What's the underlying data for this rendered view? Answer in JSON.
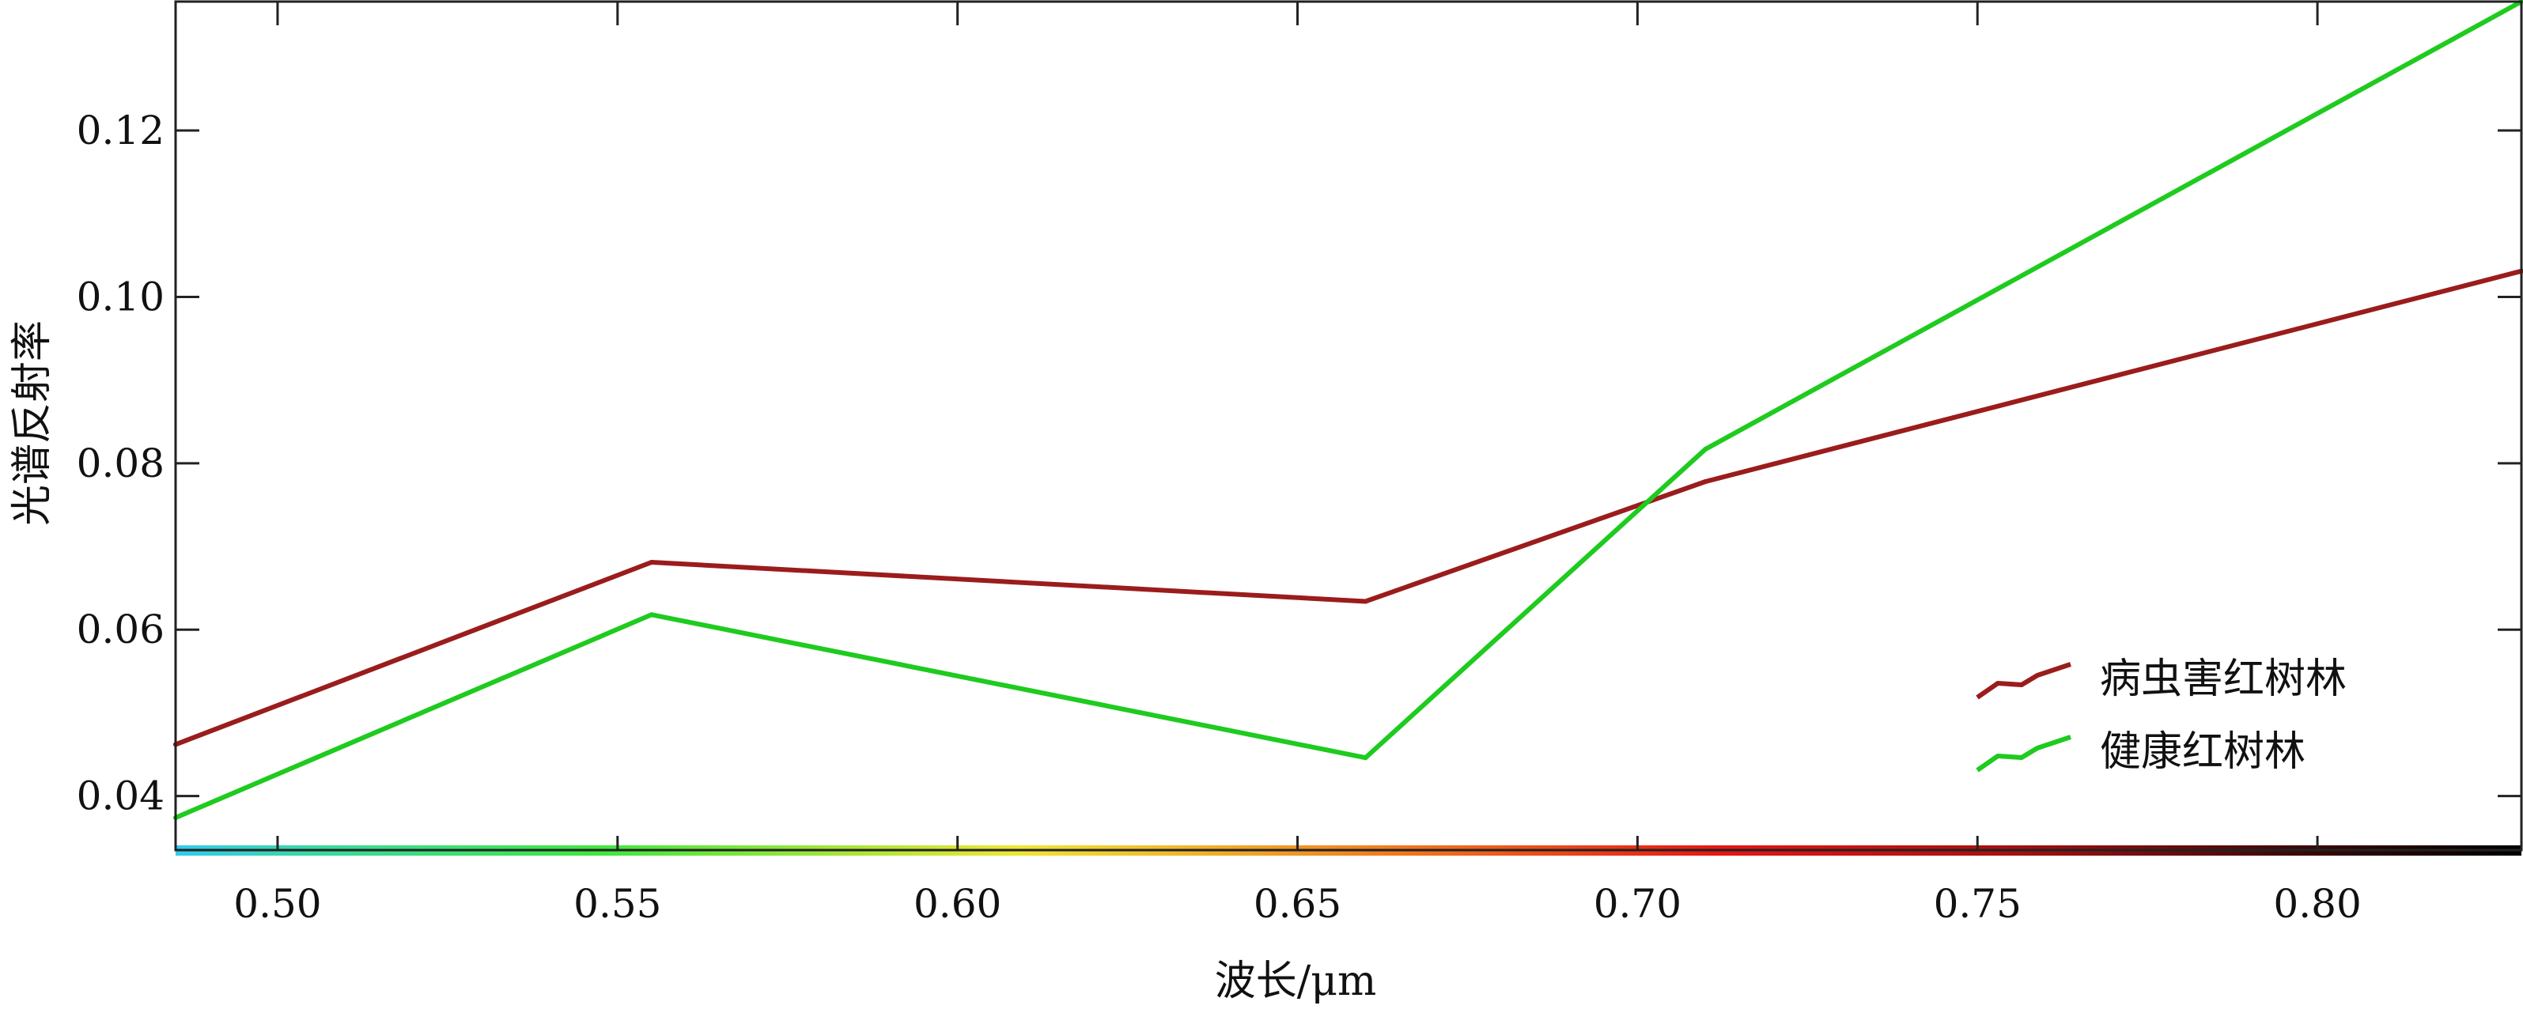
{
  "chart_data": {
    "type": "line",
    "title": "",
    "xlabel": "波长/μm",
    "ylabel": "光谱反射率",
    "xlim": [
      0.485,
      0.83
    ],
    "ylim": [
      0.0335,
      0.1355
    ],
    "x_ticks": [
      0.5,
      0.55,
      0.6,
      0.65,
      0.7,
      0.75,
      0.8
    ],
    "x_tick_labels": [
      "0.50",
      "0.55",
      "0.60",
      "0.65",
      "0.70",
      "0.75",
      "0.80"
    ],
    "y_ticks": [
      0.04,
      0.06,
      0.08,
      0.1,
      0.12
    ],
    "y_tick_labels": [
      "0.04",
      "0.06",
      "0.08",
      "0.10",
      "0.12"
    ],
    "grid": false,
    "legend_position": "bottom-right",
    "spectrum_band": true,
    "series": [
      {
        "name": "病虫害红树林",
        "color": "#9b1c1c",
        "x": [
          0.485,
          0.555,
          0.66,
          0.71,
          0.83
        ],
        "y": [
          0.0462,
          0.0681,
          0.0634,
          0.0778,
          0.1031
        ]
      },
      {
        "name": "健康红树林",
        "color": "#1ecb1e",
        "x": [
          0.485,
          0.555,
          0.66,
          0.71,
          0.83
        ],
        "y": [
          0.0374,
          0.0618,
          0.0446,
          0.0817,
          0.1355
        ]
      }
    ]
  }
}
